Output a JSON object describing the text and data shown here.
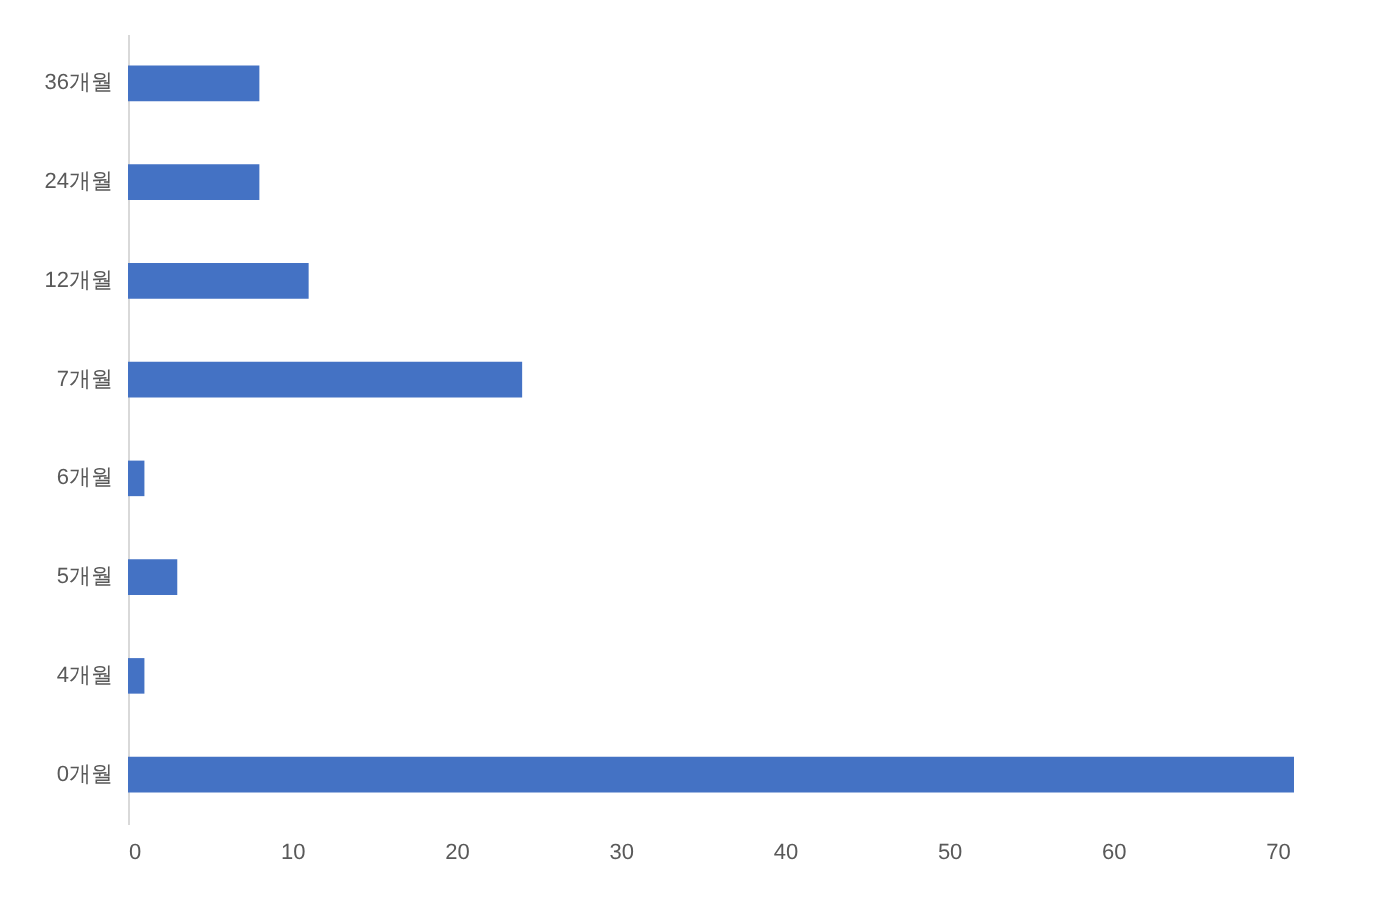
{
  "chart_data": {
    "type": "bar",
    "orientation": "horizontal",
    "categories": [
      "36개월",
      "24개월",
      "12개월",
      "7개월",
      "6개월",
      "5개월",
      "4개월",
      "0개월"
    ],
    "values": [
      8,
      8,
      11,
      24,
      1,
      3,
      1,
      71
    ],
    "color": "#4472c4",
    "xlim": [
      0,
      71
    ],
    "xticks": [
      0,
      10,
      20,
      30,
      40,
      50,
      60,
      70
    ],
    "grid": false
  }
}
